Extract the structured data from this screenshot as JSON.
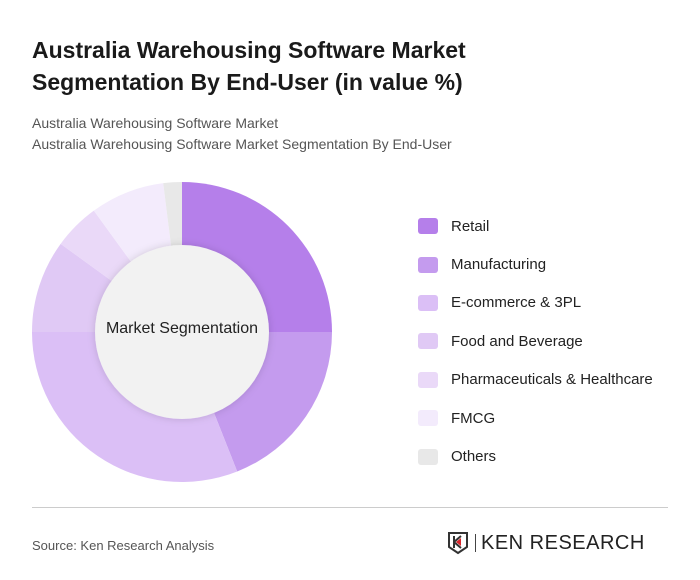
{
  "title": "Australia Warehousing Software Market Segmentation By End-User (in value %)",
  "subtitle1": "Australia Warehousing Software Market",
  "subtitle2": "Australia Warehousing Software Market Segmentation By End-User",
  "source": "Source: Ken Research Analysis",
  "logo_text": "KEN RESEARCH",
  "chart_data": {
    "type": "pie",
    "variant": "donut",
    "center_label": "Market Segmentation",
    "legend_position": "right",
    "categories": [
      "Retail",
      "Manufacturing",
      "E-commerce & 3PL",
      "Food and Beverage",
      "Pharmaceuticals & Healthcare",
      "FMCG",
      "Others"
    ],
    "values": [
      25,
      19,
      31,
      10,
      5,
      8,
      2
    ],
    "colors": [
      "#b57fea",
      "#c49bee",
      "#dbbff6",
      "#e0c9f5",
      "#ead9f8",
      "#f3ebfc",
      "#e8e8e8"
    ]
  }
}
